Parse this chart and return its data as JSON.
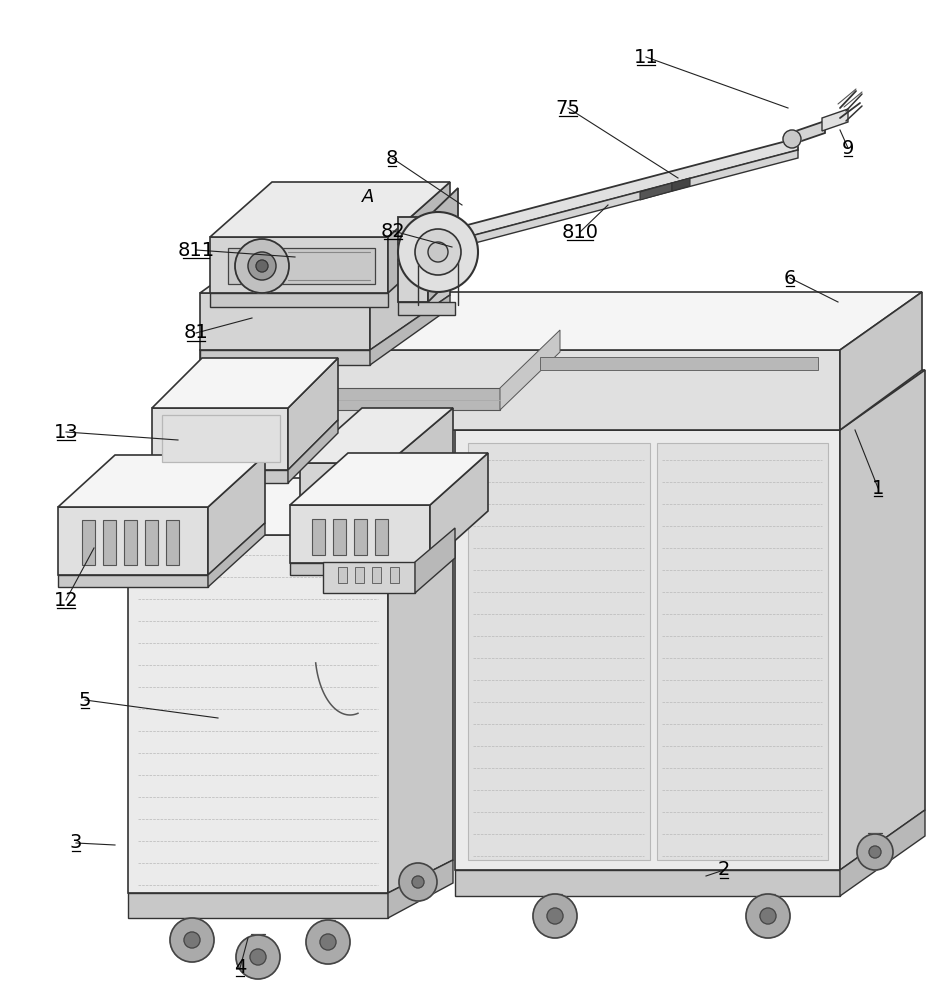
{
  "bg": "#ffffff",
  "lc": "#1a1a1a",
  "figsize": [
    9.29,
    10.0
  ],
  "dpi": 100,
  "fills": {
    "white": "#ffffff",
    "lightest": "#f5f5f5",
    "light": "#ebebeb",
    "light2": "#e0e0e0",
    "mid_light": "#d4d4d4",
    "mid": "#c8c8c8",
    "mid_dark": "#b8b8b8",
    "dark": "#a0a0a0",
    "darker": "#888888",
    "darkest": "#555555"
  }
}
